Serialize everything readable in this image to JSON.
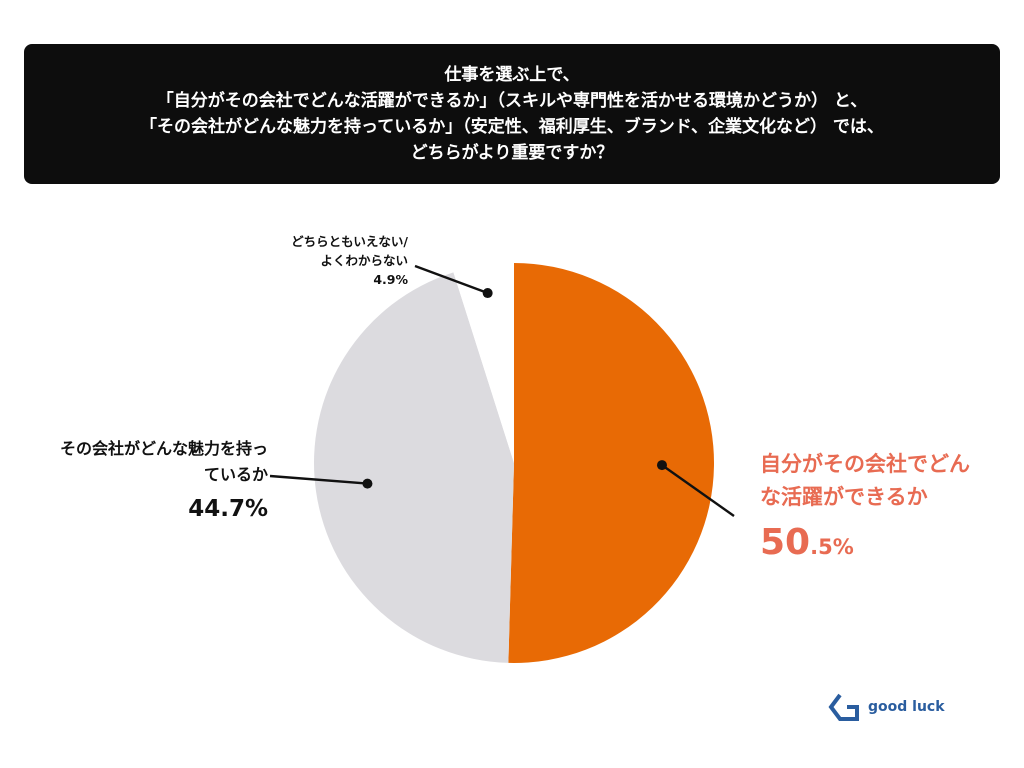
{
  "question": {
    "lines": [
      "仕事を選ぶ上で、",
      "「自分がその会社でどんな活躍ができるか」（スキルや専門性を活かせる環境かどうか） と、",
      "「その会社がどんな魅力を持っているか」（安定性、福利厚生、ブランド、企業文化など） では、",
      "どちらがより重要ですか？"
    ]
  },
  "chart_data": {
    "type": "pie",
    "slices": [
      {
        "label": "自分がその会社でどんな活躍ができるか",
        "value": 50.5,
        "color": "#e86a05"
      },
      {
        "label": "その会社がどんな魅力を持っているか",
        "value": 44.7,
        "color": "#dcdbdf"
      },
      {
        "label": "どちらともいえない/よくわからない",
        "value": 4.9,
        "color": "#ffffff"
      }
    ]
  },
  "labels": {
    "activity": {
      "line1": "自分がその会社でどん",
      "line2": "な活躍ができるか",
      "pct_main": "50",
      "pct_sub": ".5%"
    },
    "appeal": {
      "line1": "その会社がどんな魅力を持っ",
      "line2": "ているか",
      "pct": "44.7%"
    },
    "neutral": {
      "line1": "どちらともいえない/",
      "line2": "よくわからない",
      "pct": "4.9%"
    }
  },
  "brand": {
    "name": "good luck",
    "icon": "good-luck-logo-icon",
    "color": "#2a5d9f"
  }
}
